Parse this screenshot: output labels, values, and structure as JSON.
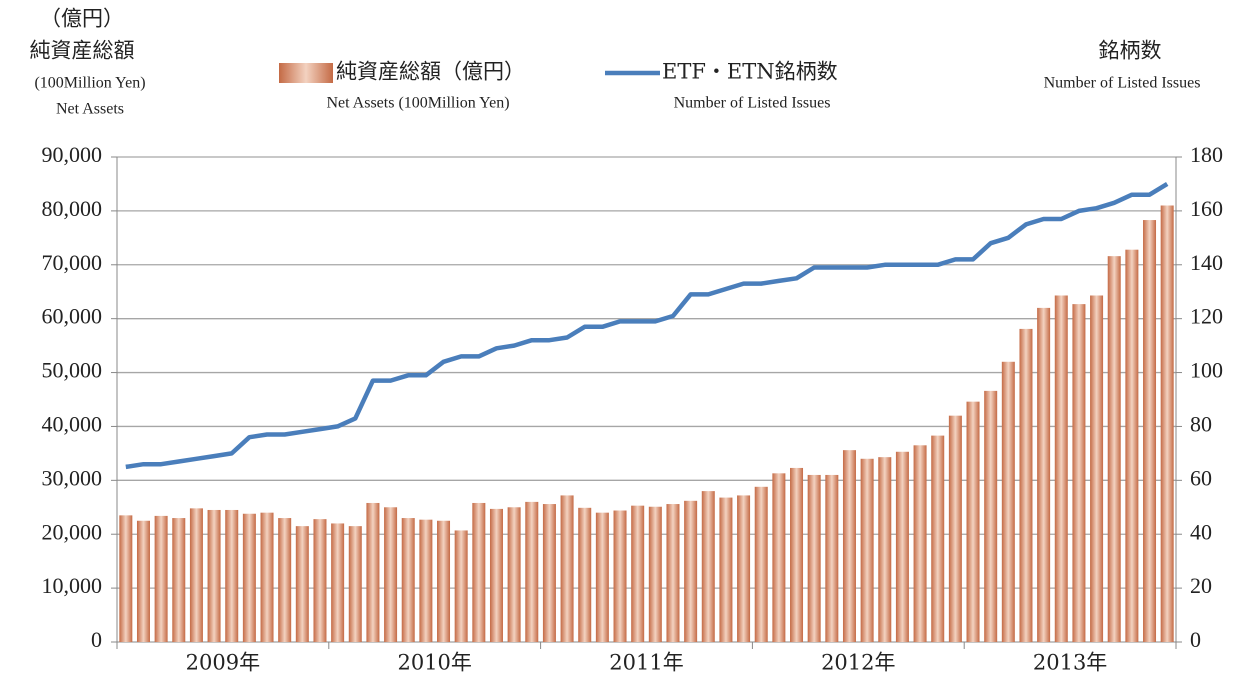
{
  "chart_data": {
    "type": "bar_line",
    "left_axis_title": [
      "（億円）",
      "純資産総額",
      "(100Million  Yen)",
      "Net Assets"
    ],
    "right_axis_title": [
      "銘柄数",
      "Number of Listed Issues"
    ],
    "categories": [
      null,
      null,
      null,
      null,
      null,
      "2009年",
      null,
      null,
      null,
      null,
      null,
      null,
      null,
      null,
      null,
      null,
      null,
      "2010年",
      null,
      null,
      null,
      null,
      null,
      null,
      null,
      null,
      null,
      null,
      null,
      "2011年",
      null,
      null,
      null,
      null,
      null,
      null,
      null,
      null,
      null,
      null,
      null,
      "2012年",
      null,
      null,
      null,
      null,
      null,
      null,
      null,
      null,
      null,
      null,
      null,
      "2013年",
      null,
      null,
      null,
      null,
      null,
      null
    ],
    "series": [
      {
        "name": "純資産総額（億円）",
        "subtitle": "Net Assets (100Million Yen)",
        "color": "#c46a45",
        "type": "bar",
        "values": [
          23500,
          22500,
          23400,
          23000,
          24800,
          24500,
          24500,
          23800,
          24000,
          23000,
          21500,
          22800,
          22000,
          21500,
          25800,
          25000,
          23000,
          22700,
          22500,
          20700,
          25800,
          24700,
          25000,
          26000,
          25600,
          27200,
          24900,
          24000,
          24400,
          25300,
          25100,
          25600,
          26200,
          28000,
          26800,
          27200,
          28800,
          31300,
          32300,
          31000,
          31000,
          35600,
          34000,
          34300,
          35300,
          36500,
          38300,
          42000,
          44600,
          46600,
          52000,
          58100,
          62000,
          64300,
          62700,
          64300,
          71600,
          72800,
          78300,
          81000
        ]
      },
      {
        "name": "ETF・ETN銘柄数",
        "subtitle": "Number of Listed Issues",
        "color": "#4a7ebb",
        "type": "line",
        "axis": "y2",
        "values": [
          65,
          66,
          66,
          67,
          68,
          69,
          70,
          76,
          77,
          77,
          78,
          79,
          80,
          83,
          97,
          97,
          99,
          99,
          104,
          106,
          106,
          109,
          110,
          112,
          112,
          113,
          117,
          117,
          119,
          119,
          119,
          121,
          129,
          129,
          131,
          133,
          133,
          134,
          135,
          139,
          139,
          139,
          139,
          140,
          140,
          140,
          140,
          142,
          142,
          148,
          150,
          155,
          157,
          157,
          160,
          161,
          163,
          166,
          166,
          170
        ]
      }
    ],
    "ylim": [
      0,
      90000
    ],
    "yticks": [
      0,
      {
        "value": 10000,
        "label": "10,000"
      },
      {
        "value": 20000,
        "label": "20,000"
      },
      {
        "value": 30000,
        "label": "30,000"
      },
      {
        "value": 40000,
        "label": "40,000"
      },
      {
        "value": 50000,
        "label": "50,000"
      },
      {
        "value": 60000,
        "label": "60,000"
      },
      {
        "value": 70000,
        "label": "70,000"
      },
      {
        "value": 80000,
        "label": "80,000"
      },
      {
        "value": 90000,
        "label": "90,000"
      }
    ],
    "y2lim": [
      0,
      180
    ],
    "y2ticks": [
      0,
      20,
      40,
      60,
      80,
      100,
      120,
      140,
      160,
      180
    ],
    "grid": true
  }
}
